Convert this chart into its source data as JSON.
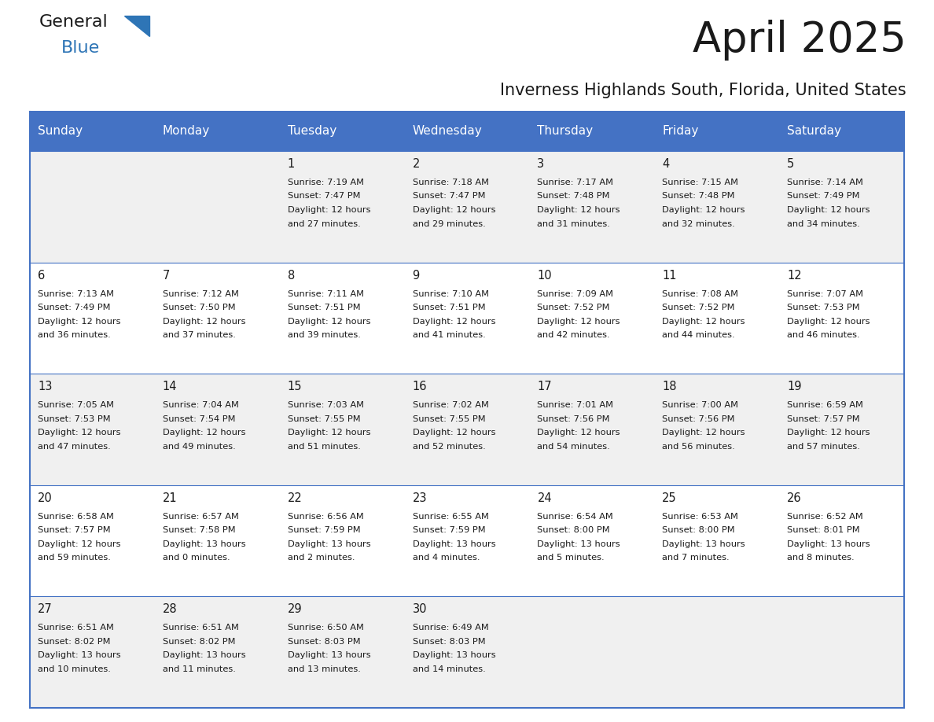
{
  "title": "April 2025",
  "subtitle": "Inverness Highlands South, Florida, United States",
  "header_color": "#4472C4",
  "header_text_color": "#FFFFFF",
  "cell_bg_white": "#FFFFFF",
  "cell_bg_gray": "#F0F0F0",
  "border_color": "#4472C4",
  "row_line_color": "#4472C4",
  "day_headers": [
    "Sunday",
    "Monday",
    "Tuesday",
    "Wednesday",
    "Thursday",
    "Friday",
    "Saturday"
  ],
  "title_color": "#1a1a1a",
  "subtitle_color": "#1a1a1a",
  "text_color": "#1a1a1a",
  "logo_black": "#1a1a1a",
  "logo_blue": "#2E75B6",
  "logo_triangle_color": "#2E75B6",
  "days": [
    {
      "day": 1,
      "col": 2,
      "row": 0,
      "sunrise": "7:19 AM",
      "sunset": "7:47 PM",
      "dl1": "Daylight: 12 hours",
      "dl2": "and 27 minutes."
    },
    {
      "day": 2,
      "col": 3,
      "row": 0,
      "sunrise": "7:18 AM",
      "sunset": "7:47 PM",
      "dl1": "Daylight: 12 hours",
      "dl2": "and 29 minutes."
    },
    {
      "day": 3,
      "col": 4,
      "row": 0,
      "sunrise": "7:17 AM",
      "sunset": "7:48 PM",
      "dl1": "Daylight: 12 hours",
      "dl2": "and 31 minutes."
    },
    {
      "day": 4,
      "col": 5,
      "row": 0,
      "sunrise": "7:15 AM",
      "sunset": "7:48 PM",
      "dl1": "Daylight: 12 hours",
      "dl2": "and 32 minutes."
    },
    {
      "day": 5,
      "col": 6,
      "row": 0,
      "sunrise": "7:14 AM",
      "sunset": "7:49 PM",
      "dl1": "Daylight: 12 hours",
      "dl2": "and 34 minutes."
    },
    {
      "day": 6,
      "col": 0,
      "row": 1,
      "sunrise": "7:13 AM",
      "sunset": "7:49 PM",
      "dl1": "Daylight: 12 hours",
      "dl2": "and 36 minutes."
    },
    {
      "day": 7,
      "col": 1,
      "row": 1,
      "sunrise": "7:12 AM",
      "sunset": "7:50 PM",
      "dl1": "Daylight: 12 hours",
      "dl2": "and 37 minutes."
    },
    {
      "day": 8,
      "col": 2,
      "row": 1,
      "sunrise": "7:11 AM",
      "sunset": "7:51 PM",
      "dl1": "Daylight: 12 hours",
      "dl2": "and 39 minutes."
    },
    {
      "day": 9,
      "col": 3,
      "row": 1,
      "sunrise": "7:10 AM",
      "sunset": "7:51 PM",
      "dl1": "Daylight: 12 hours",
      "dl2": "and 41 minutes."
    },
    {
      "day": 10,
      "col": 4,
      "row": 1,
      "sunrise": "7:09 AM",
      "sunset": "7:52 PM",
      "dl1": "Daylight: 12 hours",
      "dl2": "and 42 minutes."
    },
    {
      "day": 11,
      "col": 5,
      "row": 1,
      "sunrise": "7:08 AM",
      "sunset": "7:52 PM",
      "dl1": "Daylight: 12 hours",
      "dl2": "and 44 minutes."
    },
    {
      "day": 12,
      "col": 6,
      "row": 1,
      "sunrise": "7:07 AM",
      "sunset": "7:53 PM",
      "dl1": "Daylight: 12 hours",
      "dl2": "and 46 minutes."
    },
    {
      "day": 13,
      "col": 0,
      "row": 2,
      "sunrise": "7:05 AM",
      "sunset": "7:53 PM",
      "dl1": "Daylight: 12 hours",
      "dl2": "and 47 minutes."
    },
    {
      "day": 14,
      "col": 1,
      "row": 2,
      "sunrise": "7:04 AM",
      "sunset": "7:54 PM",
      "dl1": "Daylight: 12 hours",
      "dl2": "and 49 minutes."
    },
    {
      "day": 15,
      "col": 2,
      "row": 2,
      "sunrise": "7:03 AM",
      "sunset": "7:55 PM",
      "dl1": "Daylight: 12 hours",
      "dl2": "and 51 minutes."
    },
    {
      "day": 16,
      "col": 3,
      "row": 2,
      "sunrise": "7:02 AM",
      "sunset": "7:55 PM",
      "dl1": "Daylight: 12 hours",
      "dl2": "and 52 minutes."
    },
    {
      "day": 17,
      "col": 4,
      "row": 2,
      "sunrise": "7:01 AM",
      "sunset": "7:56 PM",
      "dl1": "Daylight: 12 hours",
      "dl2": "and 54 minutes."
    },
    {
      "day": 18,
      "col": 5,
      "row": 2,
      "sunrise": "7:00 AM",
      "sunset": "7:56 PM",
      "dl1": "Daylight: 12 hours",
      "dl2": "and 56 minutes."
    },
    {
      "day": 19,
      "col": 6,
      "row": 2,
      "sunrise": "6:59 AM",
      "sunset": "7:57 PM",
      "dl1": "Daylight: 12 hours",
      "dl2": "and 57 minutes."
    },
    {
      "day": 20,
      "col": 0,
      "row": 3,
      "sunrise": "6:58 AM",
      "sunset": "7:57 PM",
      "dl1": "Daylight: 12 hours",
      "dl2": "and 59 minutes."
    },
    {
      "day": 21,
      "col": 1,
      "row": 3,
      "sunrise": "6:57 AM",
      "sunset": "7:58 PM",
      "dl1": "Daylight: 13 hours",
      "dl2": "and 0 minutes."
    },
    {
      "day": 22,
      "col": 2,
      "row": 3,
      "sunrise": "6:56 AM",
      "sunset": "7:59 PM",
      "dl1": "Daylight: 13 hours",
      "dl2": "and 2 minutes."
    },
    {
      "day": 23,
      "col": 3,
      "row": 3,
      "sunrise": "6:55 AM",
      "sunset": "7:59 PM",
      "dl1": "Daylight: 13 hours",
      "dl2": "and 4 minutes."
    },
    {
      "day": 24,
      "col": 4,
      "row": 3,
      "sunrise": "6:54 AM",
      "sunset": "8:00 PM",
      "dl1": "Daylight: 13 hours",
      "dl2": "and 5 minutes."
    },
    {
      "day": 25,
      "col": 5,
      "row": 3,
      "sunrise": "6:53 AM",
      "sunset": "8:00 PM",
      "dl1": "Daylight: 13 hours",
      "dl2": "and 7 minutes."
    },
    {
      "day": 26,
      "col": 6,
      "row": 3,
      "sunrise": "6:52 AM",
      "sunset": "8:01 PM",
      "dl1": "Daylight: 13 hours",
      "dl2": "and 8 minutes."
    },
    {
      "day": 27,
      "col": 0,
      "row": 4,
      "sunrise": "6:51 AM",
      "sunset": "8:02 PM",
      "dl1": "Daylight: 13 hours",
      "dl2": "and 10 minutes."
    },
    {
      "day": 28,
      "col": 1,
      "row": 4,
      "sunrise": "6:51 AM",
      "sunset": "8:02 PM",
      "dl1": "Daylight: 13 hours",
      "dl2": "and 11 minutes."
    },
    {
      "day": 29,
      "col": 2,
      "row": 4,
      "sunrise": "6:50 AM",
      "sunset": "8:03 PM",
      "dl1": "Daylight: 13 hours",
      "dl2": "and 13 minutes."
    },
    {
      "day": 30,
      "col": 3,
      "row": 4,
      "sunrise": "6:49 AM",
      "sunset": "8:03 PM",
      "dl1": "Daylight: 13 hours",
      "dl2": "and 14 minutes."
    }
  ]
}
